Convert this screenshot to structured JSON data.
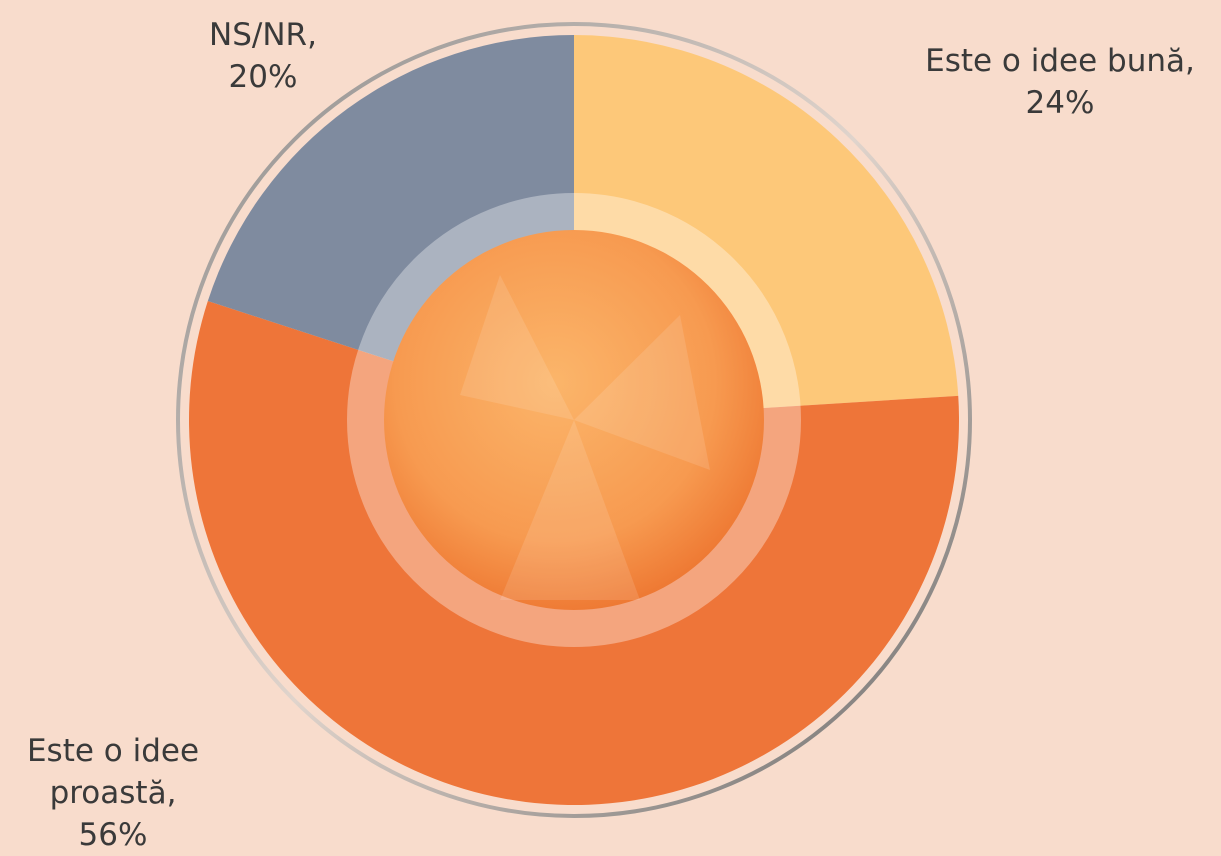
{
  "chart_data": {
    "type": "pie",
    "categories": [
      "Este o idee bună,",
      "Este o idee proastă,",
      "NS/NR,"
    ],
    "values": [
      24,
      56,
      20
    ],
    "value_labels": [
      "24%",
      "56%",
      "20%"
    ],
    "colors": [
      "#fdc879",
      "#ee7539",
      "#7f8b9f"
    ]
  }
}
